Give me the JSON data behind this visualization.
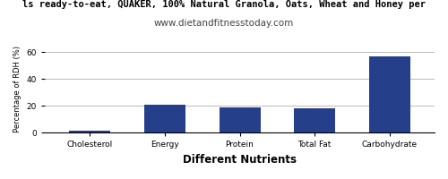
{
  "title_line1": "ls ready-to-eat, QUAKER, 100% Natural Granola, Oats, Wheat and Honey per",
  "title_line2": "www.dietandfitnesstoday.com",
  "xlabel": "Different Nutrients",
  "ylabel": "Percentage of RDH (%)",
  "categories": [
    "Cholesterol",
    "Energy",
    "Protein",
    "Total Fat",
    "Carbohydrate"
  ],
  "values": [
    1.5,
    21.0,
    19.0,
    18.0,
    57.0
  ],
  "bar_color": "#263f8a",
  "ylim": [
    0,
    65
  ],
  "yticks": [
    0,
    20,
    40,
    60
  ],
  "background_color": "#ffffff",
  "grid_color": "#b0b0b0",
  "title1_fontsize": 7.5,
  "title2_fontsize": 7.5,
  "xlabel_fontsize": 8.5,
  "ylabel_fontsize": 6,
  "tick_fontsize": 6.5
}
